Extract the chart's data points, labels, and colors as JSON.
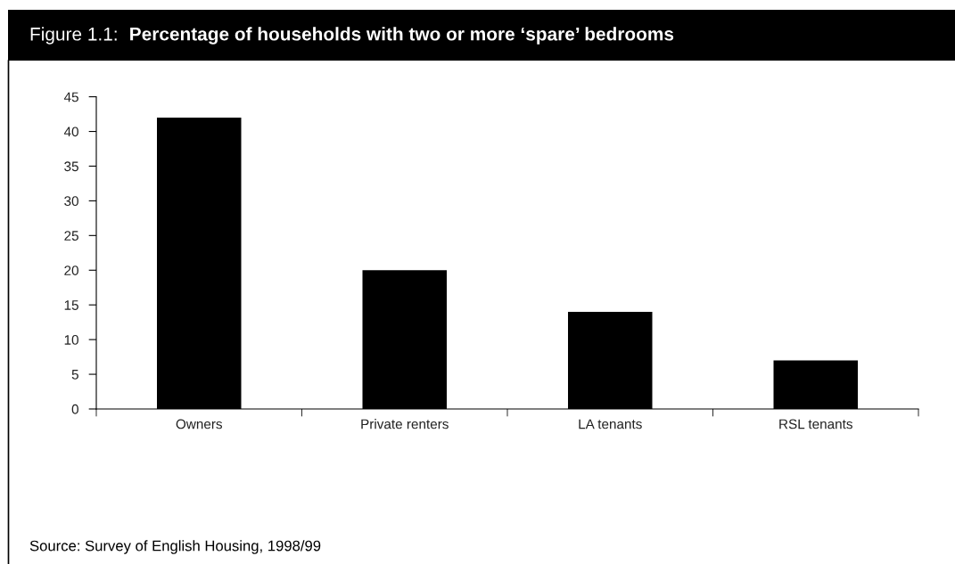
{
  "chart_data": {
    "type": "bar",
    "title": "Figure 1.1: Percentage of households with two or more ‘spare’ bedrooms",
    "categories": [
      "Owners",
      "Private renters",
      "LA tenants",
      "RSL tenants"
    ],
    "values": [
      42,
      20,
      14,
      7
    ],
    "color": "#000000",
    "ylim": [
      0,
      45
    ],
    "yticks": [
      0,
      5,
      10,
      15,
      20,
      25,
      30,
      35,
      40,
      45
    ],
    "grid": false,
    "legend": false,
    "annotations": [
      "Source: Survey of English Housing, 1998/99"
    ]
  }
}
